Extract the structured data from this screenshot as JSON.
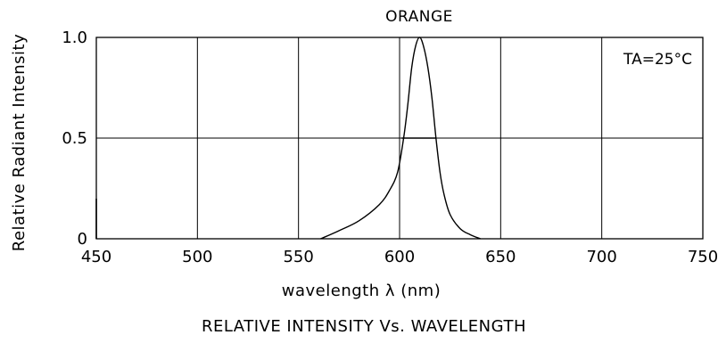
{
  "chart_data": {
    "type": "line",
    "title": "ORANGE",
    "annotation": "TA=25°C",
    "xlabel": "wavelength  λ  (nm)",
    "ylabel": "Relative  Radiant  Intensity",
    "subtitle": "RELATIVE  INTENSITY  Vs.  WAVELENGTH",
    "xlim": [
      450,
      750
    ],
    "ylim": [
      0,
      1.0
    ],
    "x_ticks": [
      "450",
      "500",
      "550",
      "600",
      "650",
      "700",
      "750"
    ],
    "x_tick_values": [
      450,
      500,
      550,
      600,
      650,
      700,
      750
    ],
    "y_ticks": [
      "0",
      "0.5",
      "1.0"
    ],
    "y_tick_values": [
      0,
      0.5,
      1.0
    ],
    "grid": true,
    "series": [
      {
        "x": [
          561,
          570,
          580,
          590,
          595,
          599,
          602,
          604,
          606,
          608,
          610,
          612,
          614,
          616,
          618,
          620,
          622,
          625,
          630,
          635,
          640
        ],
        "y": [
          0.0,
          0.04,
          0.09,
          0.17,
          0.24,
          0.33,
          0.5,
          0.66,
          0.85,
          0.96,
          1.0,
          0.95,
          0.85,
          0.7,
          0.5,
          0.33,
          0.22,
          0.12,
          0.05,
          0.02,
          0.0
        ]
      }
    ],
    "fwhm_line": {
      "x": [
        601,
        618
      ],
      "y": 0.5
    }
  }
}
